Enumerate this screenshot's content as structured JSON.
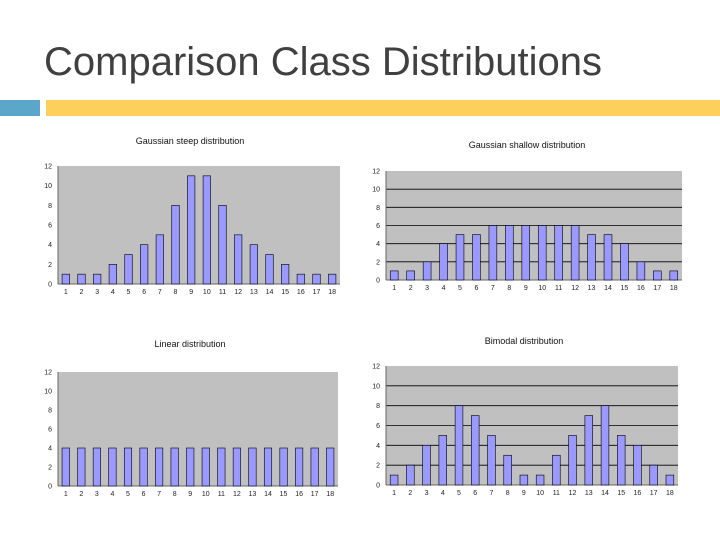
{
  "slide": {
    "title": "Comparison Class Distributions"
  },
  "colors": {
    "accent_left": "#5ca6c9",
    "accent_right": "#fdd05c",
    "plot_bg": "#c0c0c0",
    "bar": "#9999ff",
    "gridline": "#000000"
  },
  "chart_data": [
    {
      "type": "bar",
      "title": "Gaussian steep distribution",
      "categories": [
        "1",
        "2",
        "3",
        "4",
        "5",
        "6",
        "7",
        "8",
        "9",
        "10",
        "11",
        "12",
        "13",
        "14",
        "15",
        "16",
        "17",
        "18"
      ],
      "values": [
        1,
        1,
        1,
        2,
        3,
        4,
        5,
        8,
        11,
        11,
        8,
        5,
        4,
        3,
        2,
        1,
        1,
        1
      ],
      "yticks": [
        "0",
        "2",
        "4",
        "6",
        "8",
        "10",
        "12"
      ],
      "ylim": [
        0,
        12
      ],
      "xlabel": "",
      "ylabel": "",
      "grid": false,
      "legend": "none"
    },
    {
      "type": "bar",
      "title": "Gaussian shallow distribution",
      "categories": [
        "1",
        "2",
        "3",
        "4",
        "5",
        "6",
        "7",
        "8",
        "9",
        "10",
        "11",
        "12",
        "13",
        "14",
        "15",
        "16",
        "17",
        "18"
      ],
      "values": [
        1,
        1,
        2,
        4,
        5,
        5,
        6,
        6,
        6,
        6,
        6,
        6,
        5,
        5,
        4,
        2,
        1,
        1
      ],
      "yticks": [
        "0",
        "2",
        "4",
        "6",
        "8",
        "10",
        "12"
      ],
      "ylim": [
        0,
        12
      ],
      "xlabel": "",
      "ylabel": "",
      "grid": true,
      "legend": "none"
    },
    {
      "type": "bar",
      "title": "Linear distribution",
      "categories": [
        "1",
        "2",
        "3",
        "4",
        "5",
        "6",
        "7",
        "8",
        "9",
        "10",
        "11",
        "12",
        "13",
        "14",
        "15",
        "16",
        "17",
        "18"
      ],
      "values": [
        4,
        4,
        4,
        4,
        4,
        4,
        4,
        4,
        4,
        4,
        4,
        4,
        4,
        4,
        4,
        4,
        4,
        4
      ],
      "yticks": [
        "0",
        "2",
        "4",
        "6",
        "8",
        "10",
        "12"
      ],
      "ylim": [
        0,
        12
      ],
      "xlabel": "",
      "ylabel": "",
      "grid": false,
      "legend": "none"
    },
    {
      "type": "bar",
      "title": "Bimodal distribution",
      "categories": [
        "1",
        "2",
        "3",
        "4",
        "5",
        "6",
        "7",
        "8",
        "9",
        "10",
        "11",
        "12",
        "13",
        "14",
        "15",
        "16",
        "17",
        "18"
      ],
      "values": [
        1,
        2,
        4,
        5,
        8,
        7,
        5,
        3,
        1,
        1,
        3,
        5,
        7,
        8,
        5,
        4,
        2,
        1
      ],
      "yticks": [
        "0",
        "2",
        "4",
        "6",
        "8",
        "10",
        "12"
      ],
      "ylim": [
        0,
        12
      ],
      "xlabel": "",
      "ylabel": "",
      "grid": true,
      "legend": "none"
    }
  ]
}
